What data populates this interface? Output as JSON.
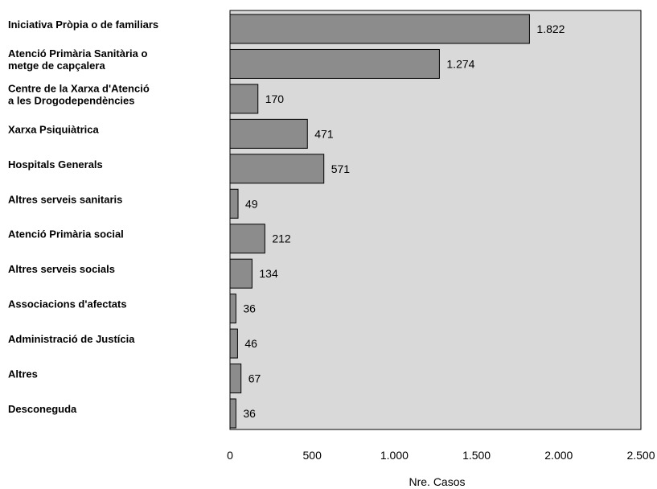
{
  "chart_data": {
    "type": "bar",
    "orientation": "horizontal",
    "title": "",
    "xlabel": "Nre. Casos",
    "ylabel": "",
    "xlim": [
      0,
      2500
    ],
    "grid": false,
    "legend": "none",
    "plot_background": "#d9d9d9",
    "bar_color": "#8c8c8c",
    "categories": [
      [
        "Iniciativa Pròpia o de familiars"
      ],
      [
        "Atenció  Primària Sanitària o",
        "metge de capçalera"
      ],
      [
        "Centre de la Xarxa d'Atenció",
        "a les Drogodependències"
      ],
      [
        "Xarxa Psiquiàtrica"
      ],
      [
        "Hospitals Generals"
      ],
      [
        "Altres serveis sanitaris"
      ],
      [
        "Atenció Primària social"
      ],
      [
        "Altres serveis socials"
      ],
      [
        "Associacions d'afectats"
      ],
      [
        "Administració de Justícia"
      ],
      [
        "Altres"
      ],
      [
        "Desconeguda"
      ]
    ],
    "values": [
      1822,
      1274,
      170,
      471,
      571,
      49,
      212,
      134,
      36,
      46,
      67,
      36
    ],
    "value_labels": [
      "1.822",
      "1.274",
      "170",
      "471",
      "571",
      "49",
      "212",
      "134",
      "36",
      "46",
      "67",
      "36"
    ],
    "x_ticks": [
      0,
      500,
      1000,
      1500,
      2000,
      2500
    ],
    "x_tick_labels": [
      "0",
      "500",
      "1.000",
      "1.500",
      "2.000",
      "2.500"
    ]
  }
}
